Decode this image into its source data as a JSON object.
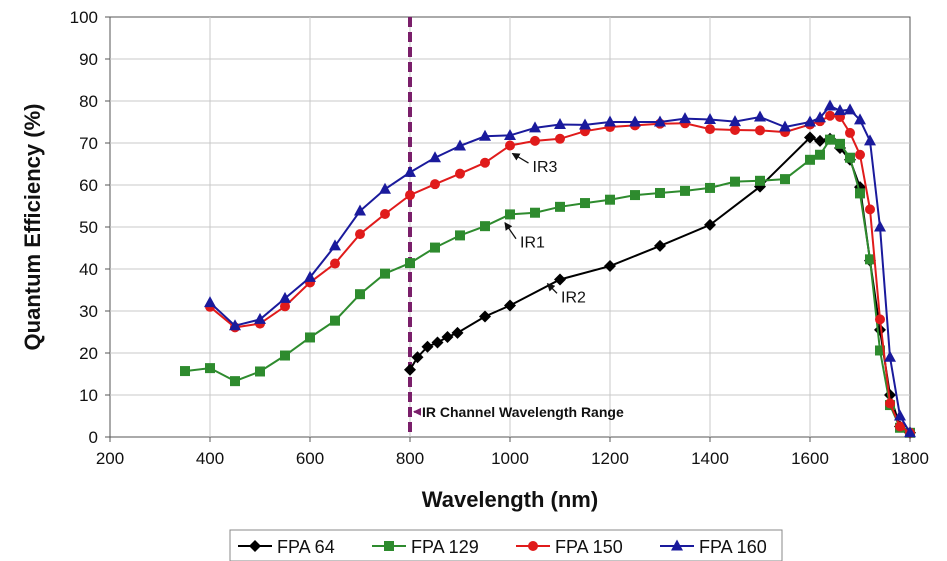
{
  "chart_data": {
    "type": "line",
    "xlabel": "Wavelength (nm)",
    "ylabel": "Quantum Efficiency (%)",
    "xlim": [
      200,
      1800
    ],
    "ylim": [
      0,
      100
    ],
    "xticks": [
      "200",
      "400",
      "600",
      "800",
      "1000",
      "1200",
      "1400",
      "1600",
      "1800"
    ],
    "yticks": [
      "0",
      "10",
      "20",
      "30",
      "40",
      "50",
      "60",
      "70",
      "80",
      "90",
      "100"
    ],
    "grid": true,
    "legend_position": "bottom",
    "series": [
      {
        "name": "FPA 64",
        "color": "#000000",
        "marker": "diamond",
        "points": [
          [
            800,
            16
          ],
          [
            815,
            19
          ],
          [
            835,
            21.5
          ],
          [
            855,
            22.5
          ],
          [
            875,
            23.8
          ],
          [
            895,
            24.8
          ],
          [
            950,
            28.7
          ],
          [
            1000,
            31.3
          ],
          [
            1100,
            37.5
          ],
          [
            1200,
            40.7
          ],
          [
            1300,
            45.5
          ],
          [
            1400,
            50.5
          ],
          [
            1500,
            59.6
          ],
          [
            1600,
            71.3
          ],
          [
            1620,
            70.5
          ],
          [
            1640,
            71
          ],
          [
            1660,
            68.8
          ],
          [
            1680,
            66
          ],
          [
            1700,
            59.5
          ],
          [
            1720,
            42
          ],
          [
            1740,
            25.5
          ],
          [
            1760,
            10
          ],
          [
            1780,
            2.5
          ],
          [
            1800,
            1
          ]
        ]
      },
      {
        "name": "FPA 129",
        "color": "#2e8b2e",
        "marker": "square",
        "points": [
          [
            350,
            15.7
          ],
          [
            400,
            16.4
          ],
          [
            450,
            13.3
          ],
          [
            500,
            15.6
          ],
          [
            550,
            19.4
          ],
          [
            600,
            23.7
          ],
          [
            650,
            27.7
          ],
          [
            700,
            34
          ],
          [
            750,
            38.9
          ],
          [
            800,
            41.4
          ],
          [
            850,
            45.1
          ],
          [
            900,
            48
          ],
          [
            950,
            50.2
          ],
          [
            1000,
            53
          ],
          [
            1050,
            53.4
          ],
          [
            1100,
            54.8
          ],
          [
            1150,
            55.7
          ],
          [
            1200,
            56.5
          ],
          [
            1250,
            57.6
          ],
          [
            1300,
            58.1
          ],
          [
            1350,
            58.6
          ],
          [
            1400,
            59.3
          ],
          [
            1450,
            60.8
          ],
          [
            1500,
            61
          ],
          [
            1550,
            61.4
          ],
          [
            1600,
            66
          ],
          [
            1620,
            67.2
          ],
          [
            1640,
            70.8
          ],
          [
            1660,
            69.8
          ],
          [
            1680,
            66.5
          ],
          [
            1700,
            58
          ],
          [
            1720,
            42.3
          ],
          [
            1740,
            20.6
          ],
          [
            1760,
            7.6
          ],
          [
            1780,
            2.2
          ],
          [
            1800,
            1
          ]
        ]
      },
      {
        "name": "FPA 150",
        "color": "#e01b1b",
        "marker": "circle",
        "points": [
          [
            400,
            31
          ],
          [
            450,
            26.1
          ],
          [
            500,
            27
          ],
          [
            550,
            31.1
          ],
          [
            600,
            36.8
          ],
          [
            650,
            41.3
          ],
          [
            700,
            48.3
          ],
          [
            750,
            53.1
          ],
          [
            800,
            57.6
          ],
          [
            850,
            60.2
          ],
          [
            900,
            62.7
          ],
          [
            950,
            65.3
          ],
          [
            1000,
            69.4
          ],
          [
            1050,
            70.5
          ],
          [
            1100,
            71
          ],
          [
            1150,
            72.8
          ],
          [
            1200,
            73.8
          ],
          [
            1250,
            74.2
          ],
          [
            1300,
            74.6
          ],
          [
            1350,
            74.7
          ],
          [
            1400,
            73.3
          ],
          [
            1450,
            73.1
          ],
          [
            1500,
            73
          ],
          [
            1550,
            72.6
          ],
          [
            1600,
            74.4
          ],
          [
            1620,
            75.2
          ],
          [
            1640,
            76.5
          ],
          [
            1660,
            76.2
          ],
          [
            1680,
            72.4
          ],
          [
            1700,
            67.2
          ],
          [
            1720,
            54.2
          ],
          [
            1740,
            28
          ],
          [
            1760,
            8
          ],
          [
            1780,
            2.5
          ],
          [
            1800,
            1
          ]
        ]
      },
      {
        "name": "FPA 160",
        "color": "#1a1a9c",
        "marker": "triangle",
        "points": [
          [
            400,
            32
          ],
          [
            450,
            26.5
          ],
          [
            500,
            28
          ],
          [
            550,
            33
          ],
          [
            600,
            38
          ],
          [
            650,
            45.5
          ],
          [
            700,
            53.8
          ],
          [
            750,
            59
          ],
          [
            800,
            63
          ],
          [
            850,
            66.5
          ],
          [
            900,
            69.3
          ],
          [
            950,
            71.6
          ],
          [
            1000,
            71.8
          ],
          [
            1050,
            73.6
          ],
          [
            1100,
            74.4
          ],
          [
            1150,
            74.3
          ],
          [
            1200,
            75
          ],
          [
            1250,
            75
          ],
          [
            1300,
            75
          ],
          [
            1350,
            75.8
          ],
          [
            1400,
            75.6
          ],
          [
            1450,
            75.1
          ],
          [
            1500,
            76.2
          ],
          [
            1550,
            73.8
          ],
          [
            1600,
            75
          ],
          [
            1620,
            76
          ],
          [
            1640,
            78.8
          ],
          [
            1660,
            77.7
          ],
          [
            1680,
            77.9
          ],
          [
            1700,
            75.5
          ],
          [
            1720,
            70.5
          ],
          [
            1740,
            50
          ],
          [
            1760,
            19
          ],
          [
            1780,
            5
          ],
          [
            1800,
            1
          ]
        ]
      }
    ],
    "annotations": [
      {
        "text": "IR3",
        "x": 1045,
        "y": 64.5,
        "arrow_to": [
          1005,
          67.5
        ]
      },
      {
        "text": "IR1",
        "x": 1020,
        "y": 46.5,
        "arrow_to": [
          990,
          51
        ]
      },
      {
        "text": "IR2",
        "x": 1102,
        "y": 33.5,
        "arrow_to": [
          1075,
          36.5
        ]
      },
      {
        "text": "IR Channel Wavelength Range",
        "x": 820,
        "y": 6,
        "arrow_to": [
          800,
          6
        ]
      }
    ],
    "vertical_line": {
      "x": 800,
      "color": "#7a1f6a",
      "style": "dashed"
    }
  }
}
